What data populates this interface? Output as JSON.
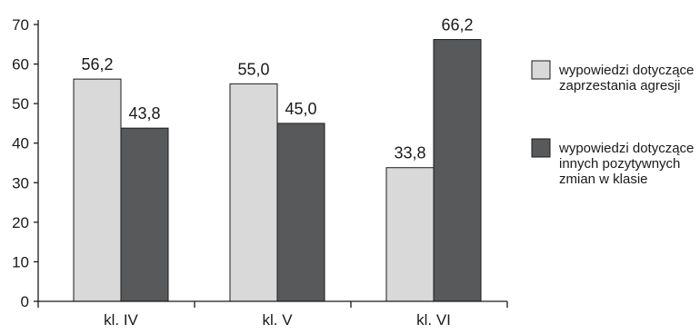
{
  "chart_data": {
    "type": "bar",
    "categories": [
      "kl. IV",
      "kl. V",
      "kl. VI"
    ],
    "series": [
      {
        "name": "wypowiedzi dotyczące zaprzestania agresji",
        "legend_lines": [
          "wypowiedzi dotyczące",
          "zaprzestania agresji"
        ],
        "values": [
          56.2,
          55.0,
          33.8
        ],
        "labels": [
          "56,2",
          "55,0",
          "33,8"
        ],
        "color": "#d9d9d9"
      },
      {
        "name": "wypowiedzi dotyczące innych pozytywnych zmian w klasie",
        "legend_lines": [
          "wypowiedzi dotyczące",
          "innych pozytywnych",
          "zmian w klasie"
        ],
        "values": [
          43.8,
          45.0,
          66.2
        ],
        "labels": [
          "43,8",
          "45,0",
          "66,2"
        ],
        "color": "#58595b"
      }
    ],
    "yticks": [
      0,
      10,
      20,
      30,
      40,
      50,
      60,
      70
    ],
    "ylim": [
      0,
      70
    ],
    "title": "",
    "xlabel": "",
    "ylabel": "",
    "grid": false,
    "legend_position": "right"
  }
}
